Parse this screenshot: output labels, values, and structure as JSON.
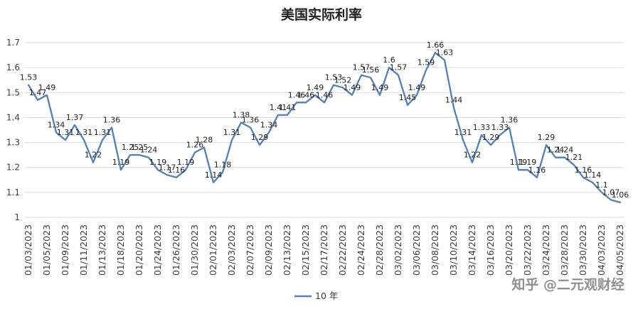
{
  "watermark": "知乎 @二元观财经",
  "chart_data": {
    "type": "line",
    "title": "美国实际利率",
    "ylim": [
      1,
      1.7
    ],
    "y_ticks": [
      1,
      1.1,
      1.2,
      1.3,
      1.4,
      1.5,
      1.6,
      1.7
    ],
    "grid": "horizontal",
    "legend_position": "bottom",
    "data_labels": true,
    "x_label_interval": 2,
    "x_labels": [
      "01/03/2023",
      "01/05/2023",
      "01/09/2023",
      "01/11/2023",
      "01/13/2023",
      "01/18/2023",
      "01/20/2023",
      "01/24/2023",
      "01/26/2023",
      "01/30/2023",
      "02/01/2023",
      "02/03/2023",
      "02/07/2023",
      "02/09/2023",
      "02/13/2023",
      "02/15/2023",
      "02/17/2023",
      "02/22/2023",
      "02/24/2023",
      "02/28/2023",
      "03/02/2023",
      "03/06/2023",
      "03/08/2023",
      "03/10/2023",
      "03/14/2023",
      "03/16/2023",
      "03/20/2023",
      "03/22/2023",
      "03/24/2023",
      "03/28/2023",
      "03/30/2023",
      "04/03/2023",
      "04/05/2023"
    ],
    "series": [
      {
        "name": "10 年",
        "color": "#4e80bc",
        "values": [
          1.53,
          1.47,
          1.49,
          1.34,
          1.31,
          1.37,
          1.31,
          1.22,
          1.31,
          1.36,
          1.19,
          1.25,
          1.25,
          1.24,
          1.19,
          1.17,
          1.16,
          1.19,
          1.26,
          1.28,
          1.14,
          1.18,
          1.31,
          1.38,
          1.36,
          1.29,
          1.34,
          1.41,
          1.41,
          1.46,
          1.46,
          1.49,
          1.46,
          1.53,
          1.52,
          1.49,
          1.57,
          1.56,
          1.49,
          1.6,
          1.57,
          1.45,
          1.49,
          1.59,
          1.66,
          1.63,
          1.44,
          1.31,
          1.22,
          1.33,
          1.29,
          1.33,
          1.36,
          1.19,
          1.19,
          1.16,
          1.29,
          1.24,
          1.24,
          1.21,
          1.16,
          1.14,
          1.1,
          1.07,
          1.06
        ]
      }
    ],
    "colors": {
      "grid": "#d9d9d9",
      "axis_text": "#3c3c3c",
      "label_text": "#212121"
    }
  }
}
